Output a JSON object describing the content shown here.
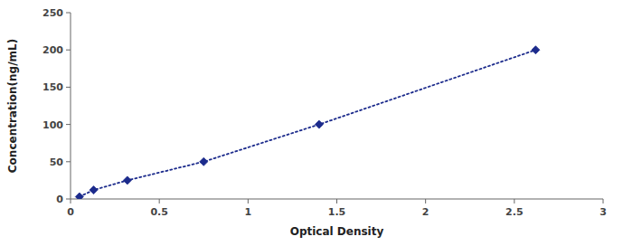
{
  "chart_data": {
    "type": "line",
    "x": [
      0.05,
      0.13,
      0.32,
      0.75,
      1.4,
      2.62
    ],
    "values": [
      3,
      12,
      25,
      50,
      100,
      200
    ],
    "color": "#1c2b8c",
    "marker": "diamond",
    "line_style": "dotted",
    "xlabel": "Optical Density",
    "ylabel": "Concentration(ng/mL)",
    "xlim": [
      0,
      3
    ],
    "ylim": [
      0,
      250
    ],
    "xticks": [
      0,
      0.5,
      1,
      1.5,
      2,
      2.5,
      3
    ],
    "yticks": [
      0,
      50,
      100,
      150,
      200,
      250
    ],
    "grid": false
  }
}
